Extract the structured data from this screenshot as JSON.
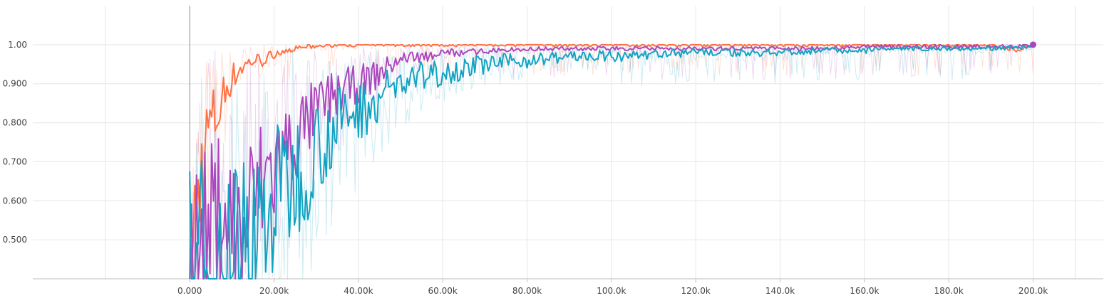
{
  "chart_data": {
    "type": "line",
    "title": "",
    "xlabel": "",
    "ylabel": "",
    "xlim": [
      -45000,
      218000
    ],
    "ylim": [
      0.4,
      1.1
    ],
    "x_ticks": [
      0,
      20000,
      40000,
      60000,
      80000,
      100000,
      120000,
      140000,
      160000,
      180000,
      200000
    ],
    "x_tick_labels": [
      "0.000",
      "20.00k",
      "40.00k",
      "60.00k",
      "80.00k",
      "100.0k",
      "120.0k",
      "140.0k",
      "160.0k",
      "180.0k",
      "200.0k"
    ],
    "y_ticks": [
      0.5,
      0.6,
      0.7,
      0.8,
      0.9,
      1.0
    ],
    "y_tick_labels": [
      "0.500",
      "0.600",
      "0.700",
      "0.800",
      "0.900",
      "1.00"
    ],
    "grid": true,
    "legend": "none",
    "series": [
      {
        "color": "#ff7043",
        "x": [
          0,
          1500,
          3000,
          4500,
          6000,
          7500,
          9000,
          10500,
          12000,
          13500,
          15000,
          17000,
          19000,
          21000,
          23000,
          25000,
          27000,
          30000,
          35000,
          40000,
          50000,
          60000,
          80000,
          100000,
          120000,
          140000,
          160000,
          180000,
          190000,
          196000,
          200000
        ],
        "y": [
          0.4,
          0.55,
          0.7,
          0.79,
          0.81,
          0.85,
          0.9,
          0.92,
          0.94,
          0.95,
          0.96,
          0.96,
          0.97,
          0.98,
          0.985,
          0.99,
          0.995,
          0.995,
          1.0,
          1.0,
          1.0,
          1.0,
          1.0,
          1.0,
          1.0,
          1.0,
          1.0,
          1.0,
          1.0,
          0.985,
          1.0
        ]
      },
      {
        "color": "#ab47bc",
        "x": [
          0,
          2000,
          4000,
          6000,
          8000,
          10000,
          12000,
          14000,
          16000,
          18000,
          20000,
          22000,
          25000,
          28000,
          30000,
          33000,
          36000,
          40000,
          44000,
          48000,
          52000,
          56000,
          60000,
          65000,
          70000,
          75000,
          80000,
          90000,
          100000,
          110000,
          120000,
          130000,
          140000,
          150000,
          160000,
          170000,
          180000,
          190000,
          200000
        ],
        "y": [
          0.4,
          0.46,
          0.48,
          0.55,
          0.6,
          0.52,
          0.48,
          0.56,
          0.62,
          0.66,
          0.68,
          0.72,
          0.75,
          0.8,
          0.83,
          0.86,
          0.88,
          0.9,
          0.92,
          0.95,
          0.97,
          0.97,
          0.98,
          0.98,
          0.985,
          0.985,
          0.99,
          0.99,
          0.99,
          0.99,
          0.99,
          0.99,
          0.99,
          0.99,
          0.995,
          0.995,
          0.995,
          0.995,
          1.0
        ]
      },
      {
        "color": "#12a3c2",
        "x": [
          0,
          2000,
          4000,
          6000,
          8000,
          10000,
          12000,
          14000,
          16000,
          18000,
          20000,
          22000,
          25000,
          28000,
          30000,
          33000,
          36000,
          40000,
          44000,
          48000,
          52000,
          56000,
          60000,
          65000,
          70000,
          75000,
          80000,
          90000,
          100000,
          110000,
          120000,
          130000,
          140000,
          150000,
          160000,
          170000,
          180000,
          190000,
          200000
        ],
        "y": [
          0.4,
          0.43,
          0.44,
          0.44,
          0.45,
          0.46,
          0.48,
          0.5,
          0.52,
          0.55,
          0.6,
          0.63,
          0.66,
          0.7,
          0.74,
          0.77,
          0.8,
          0.83,
          0.86,
          0.89,
          0.91,
          0.92,
          0.93,
          0.94,
          0.95,
          0.955,
          0.96,
          0.97,
          0.97,
          0.975,
          0.98,
          0.98,
          0.98,
          0.985,
          0.985,
          0.99,
          0.99,
          0.99,
          0.995
        ]
      }
    ]
  }
}
